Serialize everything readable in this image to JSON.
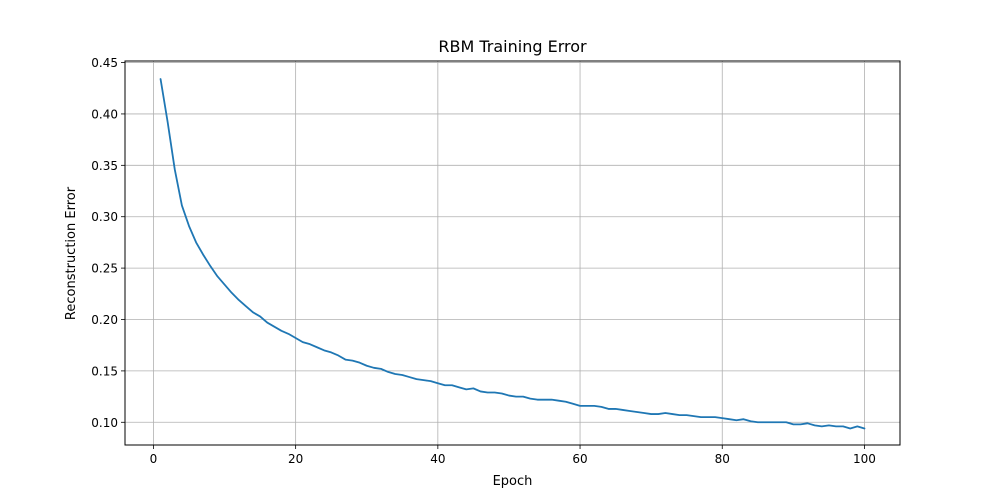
{
  "chart_data": {
    "type": "line",
    "title": "RBM Training Error",
    "xlabel": "Epoch",
    "ylabel": "Reconstruction Error",
    "xlim": [
      -4,
      105
    ],
    "ylim": [
      0.0779,
      0.4515
    ],
    "xticks": [
      0,
      20,
      40,
      60,
      80,
      100
    ],
    "yticks": [
      0.1,
      0.15,
      0.2,
      0.25,
      0.3,
      0.35,
      0.4,
      0.45
    ],
    "xtick_labels": [
      "0",
      "20",
      "40",
      "60",
      "80",
      "100"
    ],
    "ytick_labels": [
      "0.10",
      "0.15",
      "0.20",
      "0.25",
      "0.30",
      "0.35",
      "0.40",
      "0.45"
    ],
    "grid": true,
    "legend": "none",
    "line_color": "#1f77b4",
    "grid_color": "#b0b0b0",
    "series": [
      {
        "x": [
          1,
          2,
          3,
          4,
          5,
          6,
          7,
          8,
          9,
          10,
          11,
          12,
          13,
          14,
          15,
          16,
          17,
          18,
          19,
          20,
          21,
          22,
          23,
          24,
          25,
          26,
          27,
          28,
          29,
          30,
          31,
          32,
          33,
          34,
          35,
          36,
          37,
          38,
          39,
          40,
          41,
          42,
          43,
          44,
          45,
          46,
          47,
          48,
          49,
          50,
          51,
          52,
          53,
          54,
          55,
          56,
          57,
          58,
          59,
          60,
          61,
          62,
          63,
          64,
          65,
          66,
          67,
          68,
          69,
          70,
          71,
          72,
          73,
          74,
          75,
          76,
          77,
          78,
          79,
          80,
          81,
          82,
          83,
          84,
          85,
          86,
          87,
          88,
          89,
          90,
          91,
          92,
          93,
          94,
          95,
          96,
          97,
          98,
          99,
          100
        ],
        "values": [
          0.434,
          0.392,
          0.346,
          0.311,
          0.291,
          0.275,
          0.263,
          0.252,
          0.242,
          0.234,
          0.226,
          0.219,
          0.213,
          0.207,
          0.203,
          0.197,
          0.193,
          0.189,
          0.186,
          0.182,
          0.178,
          0.176,
          0.173,
          0.17,
          0.168,
          0.165,
          0.161,
          0.16,
          0.158,
          0.155,
          0.153,
          0.152,
          0.149,
          0.147,
          0.146,
          0.144,
          0.142,
          0.141,
          0.14,
          0.138,
          0.136,
          0.136,
          0.134,
          0.132,
          0.133,
          0.13,
          0.129,
          0.129,
          0.128,
          0.126,
          0.125,
          0.125,
          0.123,
          0.122,
          0.122,
          0.122,
          0.121,
          0.12,
          0.118,
          0.116,
          0.116,
          0.116,
          0.115,
          0.113,
          0.113,
          0.112,
          0.111,
          0.11,
          0.109,
          0.108,
          0.108,
          0.109,
          0.108,
          0.107,
          0.107,
          0.106,
          0.105,
          0.105,
          0.105,
          0.104,
          0.103,
          0.102,
          0.103,
          0.101,
          0.1,
          0.1,
          0.1,
          0.1,
          0.1,
          0.098,
          0.098,
          0.099,
          0.097,
          0.096,
          0.097,
          0.096,
          0.096,
          0.094,
          0.096,
          0.094
        ]
      }
    ]
  }
}
